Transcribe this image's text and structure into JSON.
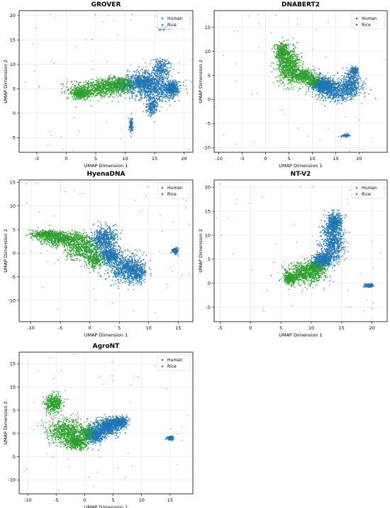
{
  "colors": {
    "human": "#1f77b4",
    "rice": "#2ca02c",
    "grid": "#dcdcdc",
    "axis": "#000000"
  },
  "chart_data": [
    {
      "type": "scatter",
      "title": "GROVER",
      "xlabel": "UMAP Dimension 1",
      "ylabel": "UMAP Dimension 2",
      "xlim": [
        -8,
        21.5
      ],
      "ylim": [
        -8,
        21
      ],
      "xticks": [
        -5,
        0,
        5,
        10,
        15,
        20
      ],
      "yticks": [
        -5,
        0,
        5,
        10,
        15,
        20
      ],
      "grid": true,
      "legend_position": "top-right",
      "series": [
        {
          "name": "Human",
          "color": "#1f77b4",
          "regions": [
            {
              "cx": 15.0,
              "cy": 5.0,
              "rx": 4.5,
              "ry": 2.5,
              "density": 1.0
            },
            {
              "cx": 13.0,
              "cy": 6.5,
              "rx": 2.5,
              "ry": 2.0,
              "density": 0.8
            },
            {
              "cx": 16.0,
              "cy": 9.0,
              "rx": 1.5,
              "ry": 2.5,
              "density": 0.4
            },
            {
              "cx": 18.0,
              "cy": 5.0,
              "rx": 1.0,
              "ry": 1.2,
              "density": 0.6
            },
            {
              "cx": 14.5,
              "cy": 1.5,
              "rx": 1.0,
              "ry": 1.8,
              "density": 0.3
            },
            {
              "cx": 16.5,
              "cy": 17.5,
              "rx": 0.8,
              "ry": 0.4,
              "density": 0.2
            },
            {
              "cx": 11.0,
              "cy": -2.5,
              "rx": 0.3,
              "ry": 1.5,
              "density": 0.15
            }
          ]
        },
        {
          "name": "Rice",
          "color": "#2ca02c",
          "regions": [
            {
              "cx": 5.5,
              "cy": 5.0,
              "rx": 5.0,
              "ry": 1.8,
              "density": 1.0
            },
            {
              "cx": 9.0,
              "cy": 6.0,
              "rx": 3.0,
              "ry": 1.5,
              "density": 0.8
            },
            {
              "cx": 2.5,
              "cy": 4.0,
              "rx": 1.5,
              "ry": 1.0,
              "density": 0.5
            }
          ]
        }
      ]
    },
    {
      "type": "scatter",
      "title": "DNABERT2",
      "xlabel": "UMAP Dimension 1",
      "ylabel": "UMAP Dimension 2",
      "xlim": [
        -11,
        26
      ],
      "ylim": [
        -11,
        18.5
      ],
      "xticks": [
        -10,
        -5,
        0,
        5,
        10,
        15,
        20
      ],
      "yticks": [
        -10,
        -5,
        0,
        5,
        10,
        15
      ],
      "grid": true,
      "legend_position": "top-right",
      "series": [
        {
          "name": "Human",
          "color": "#1f77b4",
          "regions": [
            {
              "cx": 15.0,
              "cy": 2.0,
              "rx": 4.5,
              "ry": 2.2,
              "density": 1.0
            },
            {
              "cx": 12.5,
              "cy": 3.0,
              "rx": 2.0,
              "ry": 1.5,
              "density": 0.7
            },
            {
              "cx": 18.5,
              "cy": 3.5,
              "rx": 2.0,
              "ry": 2.5,
              "density": 0.5
            },
            {
              "cx": 19.0,
              "cy": 6.0,
              "rx": 0.8,
              "ry": 0.8,
              "density": 0.3
            },
            {
              "cx": 17.0,
              "cy": -7.5,
              "rx": 1.0,
              "ry": 0.3,
              "density": 0.1
            }
          ]
        },
        {
          "name": "Rice",
          "color": "#2ca02c",
          "regions": [
            {
              "cx": 5.0,
              "cy": 7.0,
              "rx": 2.5,
              "ry": 3.5,
              "density": 1.0
            },
            {
              "cx": 8.0,
              "cy": 5.0,
              "rx": 2.5,
              "ry": 1.5,
              "density": 0.7
            },
            {
              "cx": 3.5,
              "cy": 10.0,
              "rx": 1.5,
              "ry": 2.0,
              "density": 0.5
            },
            {
              "cx": 10.5,
              "cy": 3.5,
              "rx": 1.5,
              "ry": 1.2,
              "density": 0.4
            }
          ]
        }
      ]
    },
    {
      "type": "scatter",
      "title": "HyenaDNA",
      "xlabel": "UMAP Dimension 1",
      "ylabel": "UMAP Dimension 2",
      "xlim": [
        -12,
        17.5
      ],
      "ylim": [
        -14.5,
        15.5
      ],
      "xticks": [
        -10,
        -5,
        0,
        5,
        10,
        15
      ],
      "yticks": [
        -10,
        -5,
        0,
        5,
        10,
        15
      ],
      "grid": true,
      "legend_position": "top-right",
      "series": [
        {
          "name": "Human",
          "color": "#1f77b4",
          "regions": [
            {
              "cx": 6.0,
              "cy": -3.0,
              "rx": 3.0,
              "ry": 3.0,
              "density": 1.0
            },
            {
              "cx": 2.5,
              "cy": 3.0,
              "rx": 2.0,
              "ry": 2.5,
              "density": 0.8
            },
            {
              "cx": 3.5,
              "cy": -0.5,
              "rx": 1.5,
              "ry": 1.5,
              "density": 0.6
            },
            {
              "cx": 8.0,
              "cy": -4.0,
              "rx": 1.5,
              "ry": 2.0,
              "density": 0.5
            },
            {
              "cx": 14.5,
              "cy": 0.5,
              "rx": 0.5,
              "ry": 0.6,
              "density": 0.2
            }
          ]
        },
        {
          "name": "Rice",
          "color": "#2ca02c",
          "regions": [
            {
              "cx": -4.5,
              "cy": 3.0,
              "rx": 4.0,
              "ry": 1.5,
              "density": 1.0
            },
            {
              "cx": -1.0,
              "cy": 1.0,
              "rx": 3.0,
              "ry": 2.5,
              "density": 0.8
            },
            {
              "cx": -7.5,
              "cy": 4.0,
              "rx": 2.0,
              "ry": 0.8,
              "density": 0.6
            },
            {
              "cx": 1.0,
              "cy": -1.5,
              "rx": 1.5,
              "ry": 1.5,
              "density": 0.4
            }
          ]
        }
      ]
    },
    {
      "type": "scatter",
      "title": "NT-V2",
      "xlabel": "UMAP Dimension 1",
      "ylabel": "UMAP Dimension 2",
      "xlim": [
        -6,
        22.5
      ],
      "ylim": [
        -8,
        21.5
      ],
      "xticks": [
        -5,
        0,
        5,
        10,
        15,
        20
      ],
      "yticks": [
        -5,
        0,
        5,
        10,
        15,
        20
      ],
      "grid": true,
      "legend_position": "top-right",
      "series": [
        {
          "name": "Human",
          "color": "#1f77b4",
          "regions": [
            {
              "cx": 13.5,
              "cy": 8.5,
              "rx": 1.8,
              "ry": 4.0,
              "density": 1.0
            },
            {
              "cx": 13.8,
              "cy": 12.5,
              "rx": 1.2,
              "ry": 2.0,
              "density": 0.7
            },
            {
              "cx": 12.0,
              "cy": 5.0,
              "rx": 1.5,
              "ry": 1.5,
              "density": 0.6
            },
            {
              "cx": 19.5,
              "cy": -0.5,
              "rx": 0.8,
              "ry": 0.4,
              "density": 0.2
            }
          ]
        },
        {
          "name": "Rice",
          "color": "#2ca02c",
          "regions": [
            {
              "cx": 9.0,
              "cy": 2.0,
              "rx": 3.0,
              "ry": 2.3,
              "density": 1.0
            },
            {
              "cx": 11.0,
              "cy": 3.5,
              "rx": 1.5,
              "ry": 1.5,
              "density": 0.6
            },
            {
              "cx": 6.5,
              "cy": 1.0,
              "rx": 1.2,
              "ry": 1.2,
              "density": 0.4
            }
          ]
        }
      ]
    },
    {
      "type": "scatter",
      "title": "AgroNT",
      "xlabel": "UMAP Dimension 1",
      "ylabel": "UMAP Dimension 2",
      "xlim": [
        -11.5,
        19
      ],
      "ylim": [
        -13,
        17.5
      ],
      "xticks": [
        -10,
        -5,
        0,
        5,
        10,
        15
      ],
      "yticks": [
        -10,
        -5,
        0,
        5,
        10,
        15
      ],
      "grid": true,
      "legend_position": "top-right",
      "series": [
        {
          "name": "Human",
          "color": "#1f77b4",
          "regions": [
            {
              "cx": 4.0,
              "cy": 1.5,
              "rx": 2.5,
              "ry": 1.8,
              "density": 1.0
            },
            {
              "cx": 6.0,
              "cy": 2.5,
              "rx": 1.5,
              "ry": 1.0,
              "density": 0.6
            },
            {
              "cx": 2.0,
              "cy": -0.5,
              "rx": 1.5,
              "ry": 1.5,
              "density": 0.5
            },
            {
              "cx": 15.0,
              "cy": -1.0,
              "rx": 0.6,
              "ry": 0.4,
              "density": 0.2
            }
          ]
        },
        {
          "name": "Rice",
          "color": "#2ca02c",
          "regions": [
            {
              "cx": -3.0,
              "cy": 0.5,
              "rx": 3.5,
              "ry": 2.5,
              "density": 1.0
            },
            {
              "cx": -5.5,
              "cy": 6.5,
              "rx": 1.5,
              "ry": 2.0,
              "density": 0.6
            },
            {
              "cx": -1.5,
              "cy": -2.0,
              "rx": 2.0,
              "ry": 1.5,
              "density": 0.6
            },
            {
              "cx": 0.5,
              "cy": 0.0,
              "rx": 1.5,
              "ry": 1.5,
              "density": 0.5
            }
          ]
        }
      ]
    }
  ]
}
